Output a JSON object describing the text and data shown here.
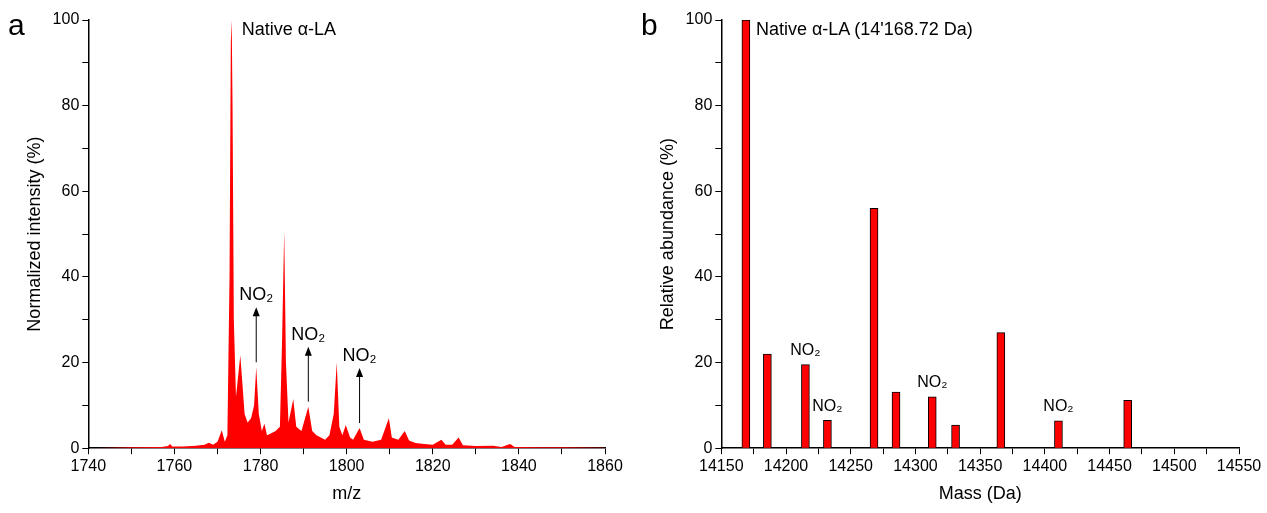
{
  "chart_data": [
    {
      "type": "area",
      "title": "a",
      "xlabel": "m/z",
      "ylabel": "Normalized intensity (%)",
      "color": "#ff0000",
      "grid": false,
      "legend": false,
      "x": [
        1740,
        1750,
        1757,
        1758.5,
        1759,
        1759.5,
        1762,
        1765,
        1767,
        1768,
        1769,
        1770,
        1771,
        1771.7,
        1772.3,
        1772.8,
        1773.1,
        1773.3,
        1773.5,
        1773.8,
        1774.3,
        1775.3,
        1775.8,
        1776.3,
        1777,
        1777.8,
        1778.5,
        1779,
        1779.6,
        1780.3,
        1780.9,
        1781.5,
        1782.5,
        1783.5,
        1784.5,
        1785,
        1785.5,
        1785.9,
        1786.5,
        1787.6,
        1788.3,
        1789.5,
        1791.1,
        1792,
        1793,
        1794,
        1795,
        1796,
        1797,
        1797.7,
        1798.3,
        1799,
        1799.8,
        1800.8,
        1801.5,
        1803,
        1804,
        1806,
        1808,
        1809.8,
        1810.5,
        1812,
        1813.5,
        1814.5,
        1816,
        1818,
        1820,
        1822,
        1823,
        1824.5,
        1826,
        1827,
        1830,
        1834,
        1836,
        1838,
        1839,
        1845,
        1850,
        1860
      ],
      "values": [
        0,
        0.2,
        0.3,
        0.5,
        1,
        0.4,
        0.4,
        0.6,
        0.8,
        1.3,
        0.8,
        1.5,
        4.2,
        1.5,
        3,
        40,
        95,
        100,
        80,
        30,
        12,
        21.7,
        15,
        8,
        6,
        7,
        10,
        18.9,
        8,
        4,
        5.7,
        3,
        3.5,
        4,
        5,
        25,
        50.8,
        20,
        6,
        11.5,
        5,
        4,
        9.7,
        4,
        3,
        2.5,
        2,
        3,
        8,
        20,
        5,
        3,
        5.4,
        2.5,
        2,
        4.7,
        2,
        1.5,
        2,
        7,
        2.5,
        2,
        4,
        1.8,
        1.2,
        1,
        0.8,
        2,
        0.8,
        0.8,
        2.5,
        0.7,
        0.5,
        0.6,
        0.3,
        1,
        0.3,
        0.2,
        0.2,
        0.1
      ],
      "xlim": [
        1740,
        1860
      ],
      "xticks": [
        1740,
        {
          "value": 1750,
          "label": null
        },
        1760,
        {
          "value": 1770,
          "label": null
        },
        1780,
        {
          "value": 1790,
          "label": null
        },
        1800,
        {
          "value": 1810,
          "label": null
        },
        1820,
        {
          "value": 1830,
          "label": null
        },
        1840,
        {
          "value": 1850,
          "label": null
        },
        1860
      ],
      "ylim": [
        0,
        100
      ],
      "yticks": [
        0,
        {
          "value": 10,
          "label": null
        },
        20,
        {
          "value": 30,
          "label": null
        },
        40,
        {
          "value": 50,
          "label": null
        },
        60,
        {
          "value": 70,
          "label": null
        },
        80,
        {
          "value": 90,
          "label": null
        },
        100
      ],
      "annotations": [
        {
          "text": "Native α-LA",
          "x": 1773.3,
          "y": 100
        },
        {
          "text": "NO₂",
          "x": 1779,
          "y": 18.9
        },
        {
          "text": "NO₂",
          "x": 1791.1,
          "y": 9.7
        },
        {
          "text": "NO₂",
          "x": 1803,
          "y": 4.7
        }
      ]
    },
    {
      "type": "bar",
      "title": "b",
      "xlabel": "Mass (Da)",
      "ylabel": "Relative abundance (%)",
      "color": "#ff0000",
      "grid": false,
      "legend": false,
      "x": [
        14169,
        14185.6,
        14215,
        14232,
        14268,
        14285,
        14313,
        14331,
        14366,
        14410.5,
        14464
      ],
      "values": [
        100,
        22,
        19.5,
        6.5,
        56,
        13.1,
        12,
        5.4,
        27,
        6.4,
        11.2
      ],
      "xlim": [
        14150,
        14550
      ],
      "xticks": [
        14150,
        {
          "value": 14175,
          "label": null
        },
        14200,
        {
          "value": 14225,
          "label": null
        },
        14250,
        {
          "value": 14275,
          "label": null
        },
        14300,
        {
          "value": 14325,
          "label": null
        },
        14350,
        {
          "value": 14375,
          "label": null
        },
        14400,
        {
          "value": 14425,
          "label": null
        },
        14450,
        {
          "value": 14475,
          "label": null
        },
        14500,
        {
          "value": 14525,
          "label": null
        },
        14550
      ],
      "ylim": [
        0,
        100
      ],
      "yticks": [
        0,
        {
          "value": 10,
          "label": null
        },
        20,
        {
          "value": 30,
          "label": null
        },
        40,
        {
          "value": 50,
          "label": null
        },
        60,
        {
          "value": 70,
          "label": null
        },
        80,
        {
          "value": 90,
          "label": null
        },
        100
      ],
      "annotations": [
        {
          "text": "Native α-LA (14'168.72 Da)",
          "x": 14169,
          "y": 100
        },
        {
          "text": "NO₂",
          "x": 14215,
          "y": 19.5
        },
        {
          "text": "NO₂",
          "x": 14232,
          "y": 6.5
        },
        {
          "text": "NO₂",
          "x": 14313,
          "y": 12
        },
        {
          "text": "NO₂",
          "x": 14410.5,
          "y": 6.4
        }
      ]
    }
  ]
}
